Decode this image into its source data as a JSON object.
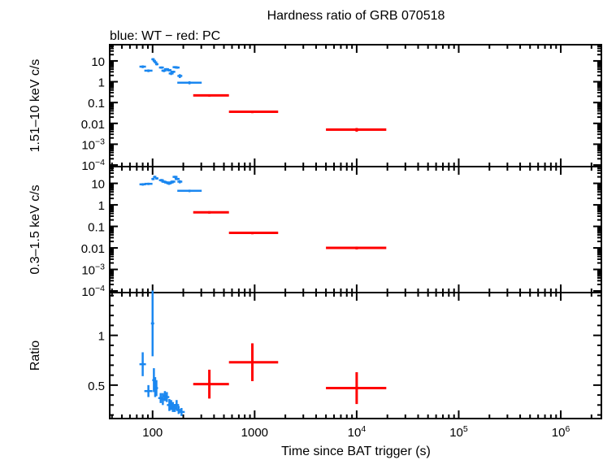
{
  "chart_data": {
    "type": "scatter",
    "title": "Hardness ratio of GRB 070518",
    "subtitle": "blue: WT − red: PC",
    "xlabel": "Time since BAT trigger (s)",
    "xscale": "log",
    "xlim": [
      38,
      2500000
    ],
    "xticks": [
      {
        "v": 100,
        "label": "100"
      },
      {
        "v": 1000,
        "label": "1000"
      },
      {
        "v": 10000,
        "label": "10",
        "exp": "4"
      },
      {
        "v": 100000,
        "label": "10",
        "exp": "5"
      },
      {
        "v": 1000000,
        "label": "10",
        "exp": "6"
      }
    ],
    "colors": {
      "WT": "#1a87f0",
      "PC": "#ff0000"
    },
    "panels": [
      {
        "ylabel": "1.51–10 keV c/s",
        "yscale": "log",
        "ylim": [
          8.4e-05,
          60
        ],
        "yticks": [
          {
            "v": 10,
            "label": "10"
          },
          {
            "v": 1,
            "label": "1"
          },
          {
            "v": 0.1,
            "label": "0.1"
          },
          {
            "v": 0.01,
            "label": "0.01"
          },
          {
            "v": 0.001,
            "label": "10",
            "exp": "−3"
          },
          {
            "v": 0.0001,
            "label": "10",
            "exp": "−4"
          }
        ],
        "series": [
          {
            "name": "WT",
            "points": [
              [
                80,
                5.3,
                4,
                0.8
              ],
              [
                91,
                3.4,
                5,
                0.5
              ],
              [
                101,
                12,
                2,
                1.5
              ],
              [
                104,
                10,
                2,
                1.2
              ],
              [
                107,
                8.5,
                2,
                1
              ],
              [
                110,
                7,
                2,
                0.9
              ],
              [
                122,
                4.8,
                3,
                0.6
              ],
              [
                129,
                3.4,
                3,
                0.5
              ],
              [
                137,
                4,
                3,
                0.5
              ],
              [
                145,
                3.6,
                3,
                0.5
              ],
              [
                152,
                2.5,
                3,
                0.4
              ],
              [
                158,
                3,
                3,
                0.4
              ],
              [
                166,
                5,
                3,
                0.6
              ],
              [
                174,
                4.8,
                3,
                0.6
              ],
              [
                185,
                1.9,
                3,
                0.4
              ],
              [
                230,
                0.9,
                15,
                0.15
              ]
            ]
          },
          {
            "name": "PC",
            "points": [
              [
                360,
                0.22,
                [
                  250,
                  560
                ],
                0.03
              ],
              [
                950,
                0.036,
                [
                  560,
                  1700
                ],
                0.005
              ],
              [
                10000,
                0.005,
                [
                  5000,
                  19500
                ],
                0.001
              ]
            ]
          }
        ]
      },
      {
        "ylabel": "0.3–1.5 keV c/s",
        "yscale": "log",
        "ylim": [
          8.4e-05,
          60
        ],
        "yticks": [
          {
            "v": 10,
            "label": "10"
          },
          {
            "v": 1,
            "label": "1"
          },
          {
            "v": 0.1,
            "label": "0.1"
          },
          {
            "v": 0.01,
            "label": "0.01"
          },
          {
            "v": 0.001,
            "label": "10",
            "exp": "−3"
          },
          {
            "v": 0.0001,
            "label": "10",
            "exp": "−4"
          }
        ],
        "series": [
          {
            "name": "WT",
            "points": [
              [
                80,
                9,
                4,
                1.2
              ],
              [
                91,
                9.5,
                5,
                1.2
              ],
              [
                101,
                16,
                2,
                2
              ],
              [
                105,
                20,
                2,
                2.5
              ],
              [
                110,
                17,
                2,
                2
              ],
              [
                122,
                14,
                3,
                2
              ],
              [
                129,
                12,
                3,
                1.5
              ],
              [
                137,
                11,
                3,
                1.5
              ],
              [
                145,
                10,
                3,
                1.5
              ],
              [
                152,
                11,
                3,
                1.5
              ],
              [
                158,
                12,
                3,
                1.5
              ],
              [
                166,
                20,
                3,
                2.5
              ],
              [
                174,
                16,
                3,
                2
              ],
              [
                185,
                12,
                3,
                2
              ],
              [
                230,
                4.5,
                15,
                0.6
              ]
            ]
          },
          {
            "name": "PC",
            "points": [
              [
                360,
                0.45,
                [
                  250,
                  560
                ],
                0.06
              ],
              [
                950,
                0.05,
                [
                  560,
                  1700
                ],
                0.007
              ],
              [
                10000,
                0.01,
                [
                  5000,
                  19500
                ],
                0.0015
              ]
            ]
          }
        ]
      },
      {
        "ylabel": "Ratio",
        "yscale": "linear",
        "ylim": [
          0.164,
          1.43
        ],
        "yticks": [
          {
            "v": 1,
            "label": "1"
          },
          {
            "v": 0.5,
            "label": "0.5"
          }
        ],
        "series": [
          {
            "name": "WT",
            "points": [
              [
                80,
                0.71,
                4,
                0.12
              ],
              [
                91,
                0.44,
                5,
                0.06
              ],
              [
                100,
                1.12,
                2,
                0.33
              ],
              [
                103,
                0.55,
                2,
                0.12
              ],
              [
                106,
                0.48,
                2,
                0.1
              ],
              [
                109,
                0.47,
                2,
                0.08
              ],
              [
                120,
                0.37,
                3,
                0.05
              ],
              [
                126,
                0.36,
                3,
                0.06
              ],
              [
                132,
                0.39,
                3,
                0.05
              ],
              [
                138,
                0.38,
                3,
                0.05
              ],
              [
                146,
                0.3,
                3,
                0.06
              ],
              [
                152,
                0.3,
                3,
                0.05
              ],
              [
                158,
                0.28,
                3,
                0.05
              ],
              [
                165,
                0.27,
                3,
                0.04
              ],
              [
                172,
                0.3,
                3,
                0.05
              ],
              [
                180,
                0.25,
                3,
                0.04
              ],
              [
                192,
                0.23,
                4,
                0.04
              ]
            ]
          },
          {
            "name": "PC",
            "points": [
              [
                360,
                0.51,
                [
                  250,
                  560
                ],
                0.145
              ],
              [
                950,
                0.73,
                [
                  560,
                  1700
                ],
                0.19
              ],
              [
                10000,
                0.47,
                [
                  5000,
                  19500
                ],
                0.16
              ]
            ]
          }
        ]
      }
    ]
  }
}
